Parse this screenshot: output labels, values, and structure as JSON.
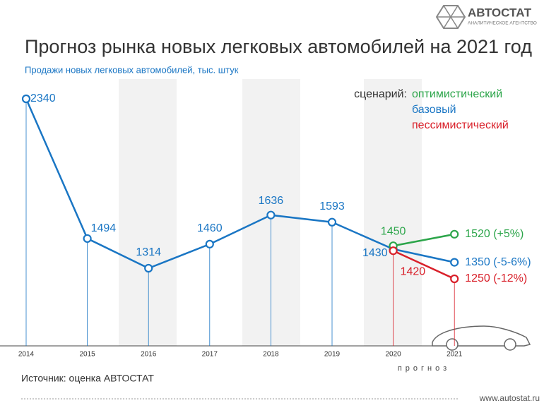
{
  "logo": {
    "name": "АВТОСТАТ",
    "tagline": "АНАЛИТИЧЕСКОЕ АГЕНТСТВО"
  },
  "footer_url": "www.autostat.ru",
  "chart_data": {
    "type": "line",
    "title": "Прогноз рынка новых легковых автомобилей на 2021 год",
    "subtitle": "Продажи новых легковых автомобилей, тыс. штук",
    "categories": [
      "2014",
      "2015",
      "2016",
      "2017",
      "2018",
      "2019",
      "2020",
      "2021"
    ],
    "legend_title": "сценарий:",
    "series": [
      {
        "name": "оптимистический",
        "color": "#2ca54a",
        "values": [
          null,
          null,
          null,
          null,
          null,
          null,
          1450,
          1520
        ],
        "value_labels": [
          null,
          null,
          null,
          null,
          null,
          null,
          null,
          "1520 (+5%)"
        ]
      },
      {
        "name": "базовый",
        "color": "#1a76c4",
        "values": [
          2340,
          1494,
          1314,
          1460,
          1636,
          1593,
          1430,
          1350
        ],
        "value_labels": [
          null,
          null,
          null,
          null,
          null,
          null,
          null,
          "1350 (-5-6%)"
        ]
      },
      {
        "name": "пессимистический",
        "color": "#d9202a",
        "values": [
          null,
          null,
          null,
          null,
          null,
          null,
          1420,
          1250
        ],
        "value_labels": [
          null,
          null,
          null,
          null,
          null,
          null,
          null,
          "1250 (-12%)"
        ]
      }
    ],
    "forecast_label": "прогноз",
    "source": "Источник: оценка АВТОСТАТ"
  }
}
